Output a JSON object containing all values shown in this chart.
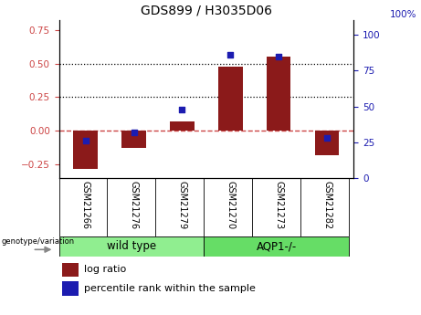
{
  "title": "GDS899 / H3035D06",
  "samples": [
    "GSM21266",
    "GSM21276",
    "GSM21279",
    "GSM21270",
    "GSM21273",
    "GSM21282"
  ],
  "log_ratio": [
    -0.28,
    -0.13,
    0.07,
    0.48,
    0.55,
    -0.18
  ],
  "percentile_rank": [
    26,
    32,
    48,
    86,
    85,
    28
  ],
  "groups": [
    {
      "label": "wild type",
      "color": "#90EE90"
    },
    {
      "label": "AQP1-/-",
      "color": "#66DD66"
    }
  ],
  "bar_color": "#8B1A1A",
  "dot_color": "#1C1CB0",
  "zero_line_color": "#CC4444",
  "dotted_line_color": "#000000",
  "ylim_left": [
    -0.35,
    0.82
  ],
  "ylim_right": [
    0,
    110
  ],
  "yticks_left": [
    -0.25,
    0.0,
    0.25,
    0.5,
    0.75
  ],
  "yticks_right": [
    0,
    25,
    50,
    75,
    100
  ],
  "ylabel_left_color": "#CC4444",
  "ylabel_right_color": "#1C1CB0",
  "hlines": [
    0.25,
    0.5
  ],
  "genotype_label": "genotype/variation",
  "legend_log_ratio": "log ratio",
  "legend_percentile": "percentile rank within the sample",
  "label_bg_color": "#C8C8C8",
  "group_wt_color": "#90EE90",
  "group_aqp_color": "#66DD66"
}
